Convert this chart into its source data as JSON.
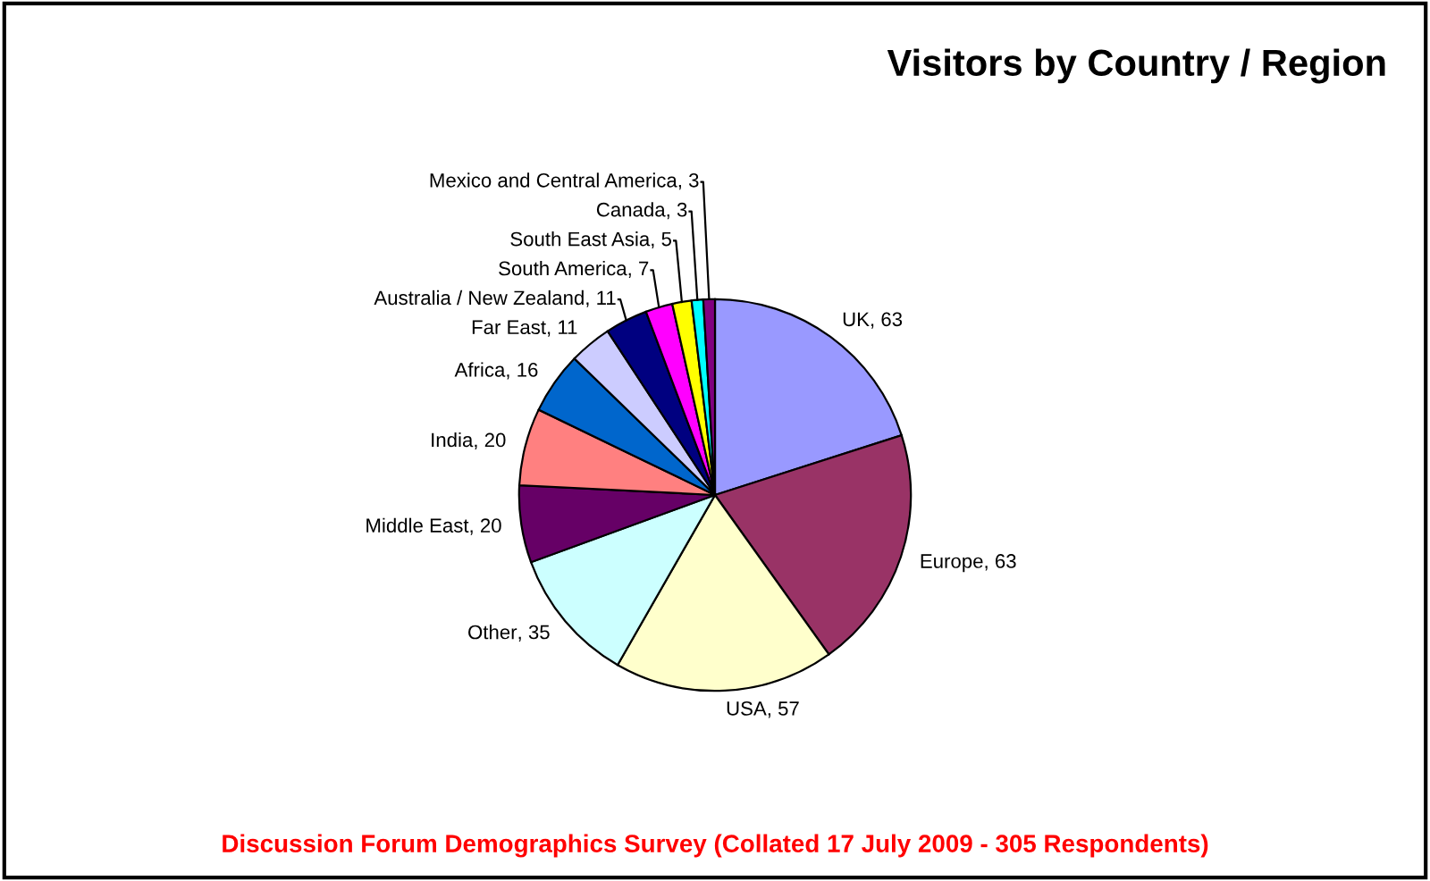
{
  "chart_data": {
    "type": "pie",
    "title": "Visitors by Country / Region",
    "categories": [
      "UK",
      "Europe",
      "USA",
      "Other",
      "Middle East",
      "India",
      "Africa",
      "Far East",
      "Australia / New Zealand",
      "South America",
      "South East Asia",
      "Canada",
      "Mexico and Central America"
    ],
    "values": [
      63,
      63,
      57,
      35,
      20,
      20,
      16,
      11,
      11,
      7,
      5,
      3,
      3
    ],
    "colors": [
      "#9999ff",
      "#993366",
      "#ffffcc",
      "#ccffff",
      "#660066",
      "#ff8080",
      "#0066cc",
      "#ccccff",
      "#000080",
      "#ff00ff",
      "#ffff00",
      "#00ffff",
      "#800080"
    ],
    "value_labels": [
      ", 63",
      ", 63",
      ", 57",
      ", 35",
      ", 20",
      ", 20",
      ", 16",
      ", 11",
      ", 11",
      ", 7",
      ", 5",
      ", 3",
      ", 3"
    ],
    "annotations": [
      "Discussion Forum Demographics Survey (Collated 17 July 2009 - 305 Respondents)"
    ]
  }
}
